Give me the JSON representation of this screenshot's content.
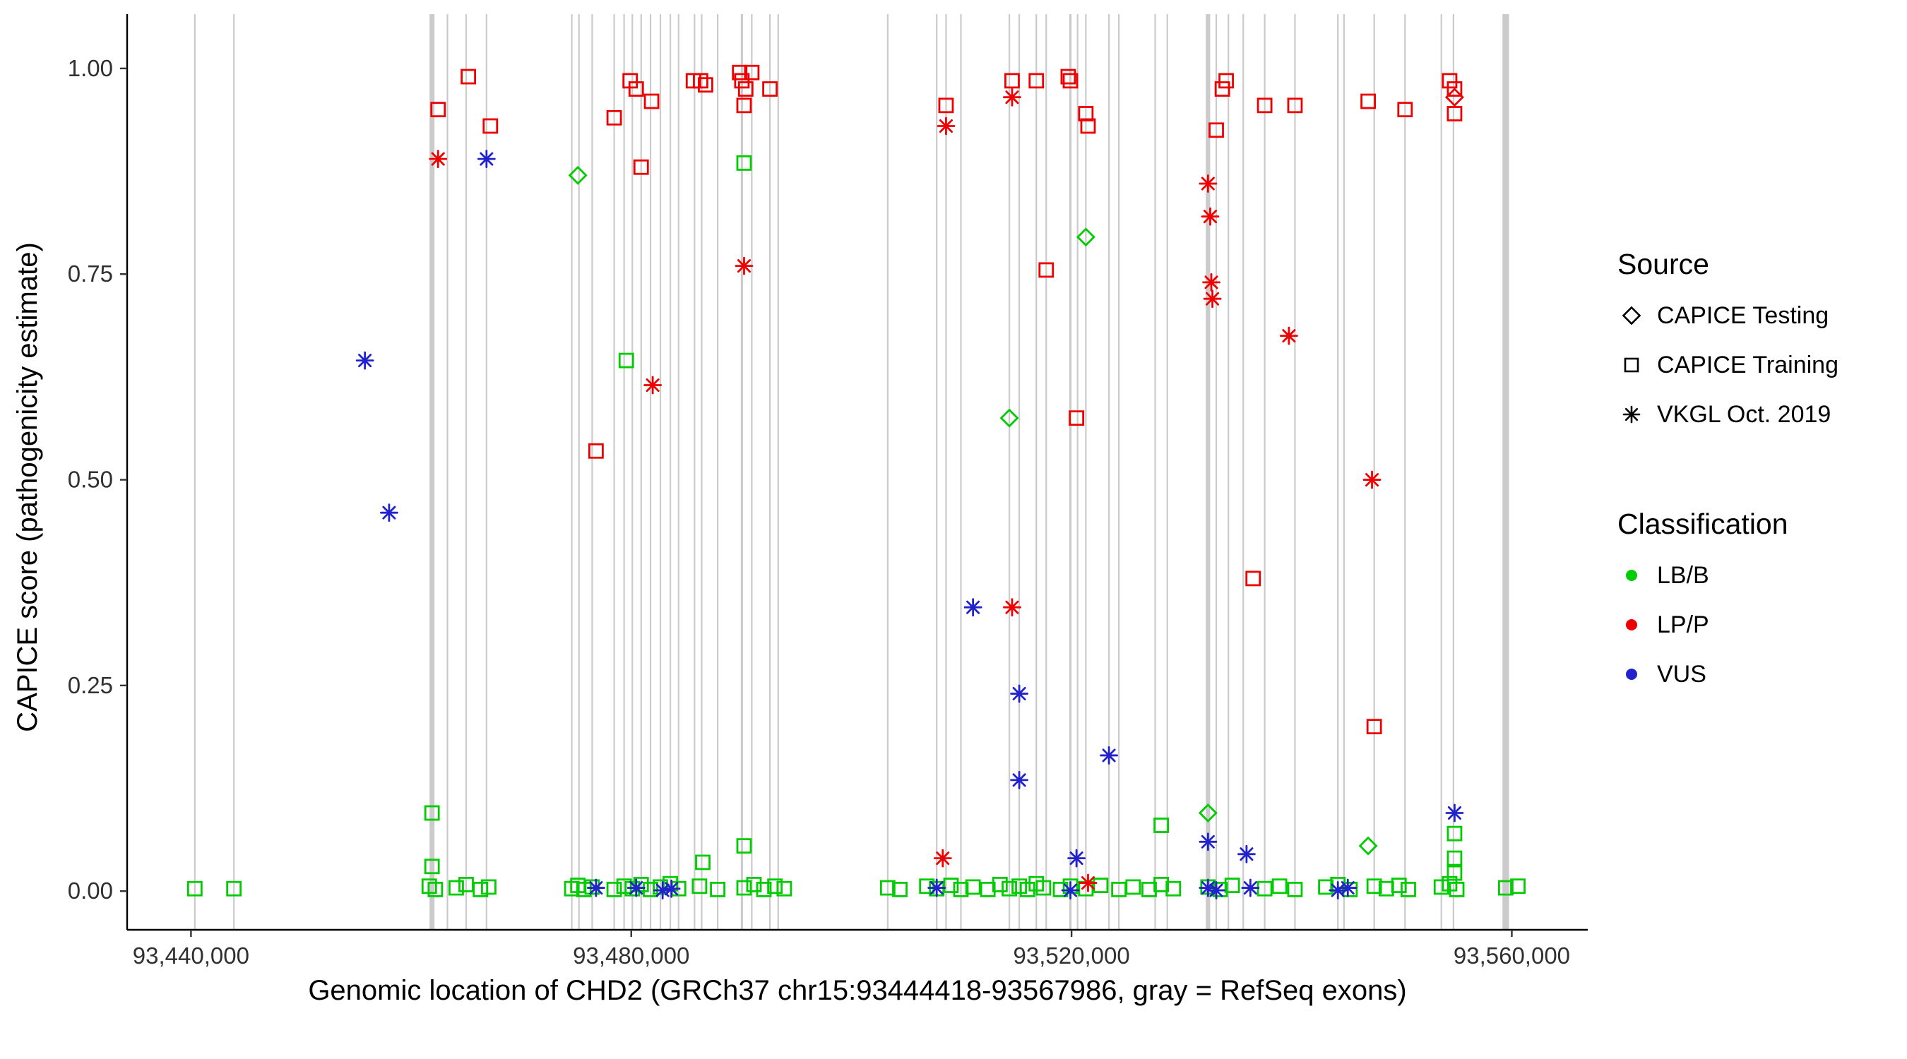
{
  "chart_data": {
    "type": "scatter",
    "title": "",
    "xlabel": "Genomic location of CHD2 (GRCh37 chr15:93444418-93567986, gray = RefSeq exons)",
    "ylabel": "CAPICE score (pathogenicity estimate)",
    "x_domain": [
      93434200,
      93566900
    ],
    "y_domain": [
      -0.047,
      1.066
    ],
    "x_ticks": [
      {
        "value": 93440000,
        "label": "93,440,000"
      },
      {
        "value": 93480000,
        "label": "93,480,000"
      },
      {
        "value": 93520000,
        "label": "93,520,000"
      },
      {
        "value": 93560000,
        "label": "93,560,000"
      }
    ],
    "y_ticks": [
      {
        "value": 0.0,
        "label": "0.00"
      },
      {
        "value": 0.25,
        "label": "0.25"
      },
      {
        "value": 0.5,
        "label": "0.50"
      },
      {
        "value": 0.75,
        "label": "0.75"
      },
      {
        "value": 1.0,
        "label": "1.00"
      }
    ],
    "exon_color": "#cbcbcb",
    "colors": {
      "LB/B": "#00cc00",
      "LP/P": "#ee0000",
      "VUS": "#2222cc"
    },
    "legend": {
      "source": {
        "title": "Source",
        "items": [
          {
            "shape": "diamond",
            "label": "CAPICE Testing"
          },
          {
            "shape": "square",
            "label": "CAPICE Training"
          },
          {
            "shape": "asterisk",
            "label": "VKGL Oct. 2019"
          }
        ]
      },
      "classification": {
        "title": "Classification",
        "items": [
          {
            "color_key": "LB/B",
            "label": "LB/B"
          },
          {
            "color_key": "LP/P",
            "label": "LP/P"
          },
          {
            "color_key": "VUS",
            "label": "VUS"
          }
        ]
      }
    },
    "exons": [
      [
        93440350,
        130
      ],
      [
        93443900,
        130
      ],
      [
        93461900,
        450
      ],
      [
        93463300,
        130
      ],
      [
        93465000,
        130
      ],
      [
        93466850,
        130
      ],
      [
        93474600,
        130
      ],
      [
        93475250,
        130
      ],
      [
        93476450,
        130
      ],
      [
        93478450,
        130
      ],
      [
        93479350,
        130
      ],
      [
        93480100,
        130
      ],
      [
        93480900,
        130
      ],
      [
        93481750,
        130
      ],
      [
        93482650,
        130
      ],
      [
        93483550,
        130
      ],
      [
        93484300,
        130
      ],
      [
        93485750,
        130
      ],
      [
        93486400,
        130
      ],
      [
        93487850,
        130
      ],
      [
        93490050,
        200
      ],
      [
        93490950,
        130
      ],
      [
        93492600,
        130
      ],
      [
        93493350,
        130
      ],
      [
        93503300,
        130
      ],
      [
        93507750,
        130
      ],
      [
        93508600,
        130
      ],
      [
        93509950,
        130
      ],
      [
        93514350,
        130
      ],
      [
        93515250,
        130
      ],
      [
        93516800,
        130
      ],
      [
        93517700,
        130
      ],
      [
        93519900,
        200
      ],
      [
        93520550,
        130
      ],
      [
        93521300,
        130
      ],
      [
        93523400,
        130
      ],
      [
        93524300,
        130
      ],
      [
        93527600,
        130
      ],
      [
        93528700,
        130
      ],
      [
        93532400,
        400
      ],
      [
        93533150,
        130
      ],
      [
        93534250,
        130
      ],
      [
        93535600,
        130
      ],
      [
        93537550,
        130
      ],
      [
        93540300,
        130
      ],
      [
        93544200,
        130
      ],
      [
        93544750,
        130
      ],
      [
        93547500,
        130
      ],
      [
        93550300,
        130
      ],
      [
        93553600,
        130
      ],
      [
        93554700,
        130
      ],
      [
        93559450,
        600
      ]
    ],
    "points": [
      [
        93440350,
        0.003,
        "training",
        "LB/B"
      ],
      [
        93443900,
        0.003,
        "training",
        "LB/B"
      ],
      [
        93461650,
        0.006,
        "training",
        "LB/B"
      ],
      [
        93462200,
        0.002,
        "training",
        "LB/B"
      ],
      [
        93464100,
        0.004,
        "training",
        "LB/B"
      ],
      [
        93465000,
        0.008,
        "training",
        "LB/B"
      ],
      [
        93466300,
        0.002,
        "training",
        "LB/B"
      ],
      [
        93467050,
        0.005,
        "training",
        "LB/B"
      ],
      [
        93474600,
        0.003,
        "training",
        "LB/B"
      ],
      [
        93475150,
        0.007,
        "training",
        "LB/B"
      ],
      [
        93475700,
        0.002,
        "training",
        "LB/B"
      ],
      [
        93476450,
        0.005,
        "training",
        "LB/B"
      ],
      [
        93478450,
        0.002,
        "training",
        "LB/B"
      ],
      [
        93479350,
        0.006,
        "training",
        "LB/B"
      ],
      [
        93480100,
        0.003,
        "training",
        "LB/B"
      ],
      [
        93480900,
        0.008,
        "training",
        "LB/B"
      ],
      [
        93481750,
        0.002,
        "training",
        "LB/B"
      ],
      [
        93482650,
        0.005,
        "training",
        "LB/B"
      ],
      [
        93483550,
        0.009,
        "training",
        "LB/B"
      ],
      [
        93484300,
        0.003,
        "training",
        "LB/B"
      ],
      [
        93486200,
        0.006,
        "training",
        "LB/B"
      ],
      [
        93487850,
        0.002,
        "training",
        "LB/B"
      ],
      [
        93490250,
        0.004,
        "training",
        "LB/B"
      ],
      [
        93491150,
        0.008,
        "training",
        "LB/B"
      ],
      [
        93492050,
        0.002,
        "training",
        "LB/B"
      ],
      [
        93493050,
        0.006,
        "training",
        "LB/B"
      ],
      [
        93493900,
        0.003,
        "training",
        "LB/B"
      ],
      [
        93503300,
        0.004,
        "training",
        "LB/B"
      ],
      [
        93504400,
        0.002,
        "training",
        "LB/B"
      ],
      [
        93506850,
        0.006,
        "training",
        "LB/B"
      ],
      [
        93507750,
        0.003,
        "training",
        "LB/B"
      ],
      [
        93509050,
        0.007,
        "training",
        "LB/B"
      ],
      [
        93509950,
        0.002,
        "training",
        "LB/B"
      ],
      [
        93511050,
        0.005,
        "training",
        "LB/B"
      ],
      [
        93512400,
        0.002,
        "training",
        "LB/B"
      ],
      [
        93513500,
        0.008,
        "training",
        "LB/B"
      ],
      [
        93514350,
        0.003,
        "training",
        "LB/B"
      ],
      [
        93515250,
        0.006,
        "training",
        "LB/B"
      ],
      [
        93516000,
        0.002,
        "training",
        "LB/B"
      ],
      [
        93516800,
        0.009,
        "training",
        "LB/B"
      ],
      [
        93517450,
        0.004,
        "training",
        "LB/B"
      ],
      [
        93519000,
        0.002,
        "training",
        "LB/B"
      ],
      [
        93519900,
        0.006,
        "training",
        "LB/B"
      ],
      [
        93521300,
        0.003,
        "training",
        "LB/B"
      ],
      [
        93522650,
        0.007,
        "training",
        "LB/B"
      ],
      [
        93524300,
        0.002,
        "training",
        "LB/B"
      ],
      [
        93525600,
        0.005,
        "training",
        "LB/B"
      ],
      [
        93527050,
        0.002,
        "training",
        "LB/B"
      ],
      [
        93528150,
        0.008,
        "training",
        "LB/B"
      ],
      [
        93529250,
        0.003,
        "training",
        "LB/B"
      ],
      [
        93532400,
        0.005,
        "training",
        "LB/B"
      ],
      [
        93533500,
        0.002,
        "training",
        "LB/B"
      ],
      [
        93534600,
        0.007,
        "training",
        "LB/B"
      ],
      [
        93537550,
        0.003,
        "training",
        "LB/B"
      ],
      [
        93538900,
        0.006,
        "training",
        "LB/B"
      ],
      [
        93540300,
        0.002,
        "training",
        "LB/B"
      ],
      [
        93543100,
        0.005,
        "training",
        "LB/B"
      ],
      [
        93544200,
        0.008,
        "training",
        "LB/B"
      ],
      [
        93545300,
        0.002,
        "training",
        "LB/B"
      ],
      [
        93547500,
        0.006,
        "training",
        "LB/B"
      ],
      [
        93548600,
        0.003,
        "training",
        "LB/B"
      ],
      [
        93549750,
        0.007,
        "training",
        "LB/B"
      ],
      [
        93550600,
        0.002,
        "training",
        "LB/B"
      ],
      [
        93553600,
        0.005,
        "training",
        "LB/B"
      ],
      [
        93554350,
        0.009,
        "training",
        "LB/B"
      ],
      [
        93555000,
        0.002,
        "training",
        "LB/B"
      ],
      [
        93559450,
        0.004,
        "training",
        "LB/B"
      ],
      [
        93560550,
        0.006,
        "training",
        "LB/B"
      ],
      [
        93461900,
        0.095,
        "training",
        "LB/B"
      ],
      [
        93461900,
        0.03,
        "training",
        "LB/B"
      ],
      [
        93486500,
        0.035,
        "training",
        "LB/B"
      ],
      [
        93490250,
        0.055,
        "training",
        "LB/B"
      ],
      [
        93528150,
        0.08,
        "training",
        "LB/B"
      ],
      [
        93554800,
        0.07,
        "training",
        "LB/B"
      ],
      [
        93554800,
        0.04,
        "training",
        "LB/B"
      ],
      [
        93554800,
        0.022,
        "training",
        "LB/B"
      ],
      [
        93479550,
        0.645,
        "training",
        "LB/B"
      ],
      [
        93490250,
        0.885,
        "training",
        "LB/B"
      ],
      [
        93475150,
        0.87,
        "testing",
        "LB/B"
      ],
      [
        93514350,
        0.575,
        "testing",
        "LB/B"
      ],
      [
        93521300,
        0.795,
        "testing",
        "LB/B"
      ],
      [
        93532400,
        0.095,
        "testing",
        "LB/B"
      ],
      [
        93546950,
        0.055,
        "testing",
        "LB/B"
      ],
      [
        93455800,
        0.645,
        "vkgl",
        "VUS"
      ],
      [
        93458000,
        0.46,
        "vkgl",
        "VUS"
      ],
      [
        93466850,
        0.89,
        "vkgl",
        "VUS"
      ],
      [
        93511050,
        0.345,
        "vkgl",
        "VUS"
      ],
      [
        93515250,
        0.24,
        "vkgl",
        "VUS"
      ],
      [
        93515250,
        0.135,
        "vkgl",
        "VUS"
      ],
      [
        93523400,
        0.165,
        "vkgl",
        "VUS"
      ],
      [
        93520450,
        0.04,
        "vkgl",
        "VUS"
      ],
      [
        93532400,
        0.06,
        "vkgl",
        "VUS"
      ],
      [
        93535900,
        0.045,
        "vkgl",
        "VUS"
      ],
      [
        93554800,
        0.095,
        "vkgl",
        "VUS"
      ],
      [
        93476800,
        0.004,
        "vkgl",
        "VUS"
      ],
      [
        93480450,
        0.004,
        "vkgl",
        "VUS"
      ],
      [
        93482850,
        0.001,
        "vkgl",
        "VUS"
      ],
      [
        93483650,
        0.003,
        "vkgl",
        "VUS"
      ],
      [
        93507750,
        0.004,
        "vkgl",
        "VUS"
      ],
      [
        93519900,
        0.001,
        "vkgl",
        "VUS"
      ],
      [
        93532400,
        0.004,
        "vkgl",
        "VUS"
      ],
      [
        93533150,
        0.001,
        "vkgl",
        "VUS"
      ],
      [
        93536250,
        0.004,
        "vkgl",
        "VUS"
      ],
      [
        93544200,
        0.001,
        "vkgl",
        "VUS"
      ],
      [
        93545100,
        0.004,
        "vkgl",
        "VUS"
      ],
      [
        93462450,
        0.95,
        "training",
        "LP/P"
      ],
      [
        93465200,
        0.99,
        "training",
        "LP/P"
      ],
      [
        93467200,
        0.93,
        "training",
        "LP/P"
      ],
      [
        93476800,
        0.535,
        "training",
        "LP/P"
      ],
      [
        93478450,
        0.94,
        "training",
        "LP/P"
      ],
      [
        93479900,
        0.985,
        "training",
        "LP/P"
      ],
      [
        93480450,
        0.975,
        "training",
        "LP/P"
      ],
      [
        93480900,
        0.88,
        "training",
        "LP/P"
      ],
      [
        93481850,
        0.96,
        "training",
        "LP/P"
      ],
      [
        93485650,
        0.985,
        "training",
        "LP/P"
      ],
      [
        93486300,
        0.985,
        "training",
        "LP/P"
      ],
      [
        93486750,
        0.98,
        "training",
        "LP/P"
      ],
      [
        93489850,
        0.995,
        "training",
        "LP/P"
      ],
      [
        93490050,
        0.985,
        "training",
        "LP/P"
      ],
      [
        93490400,
        0.975,
        "training",
        "LP/P"
      ],
      [
        93490250,
        0.955,
        "training",
        "LP/P"
      ],
      [
        93490950,
        0.995,
        "training",
        "LP/P"
      ],
      [
        93492600,
        0.975,
        "training",
        "LP/P"
      ],
      [
        93508600,
        0.955,
        "training",
        "LP/P"
      ],
      [
        93514600,
        0.985,
        "training",
        "LP/P"
      ],
      [
        93516800,
        0.985,
        "training",
        "LP/P"
      ],
      [
        93517700,
        0.755,
        "training",
        "LP/P"
      ],
      [
        93519700,
        0.99,
        "training",
        "LP/P"
      ],
      [
        93519900,
        0.985,
        "training",
        "LP/P"
      ],
      [
        93520450,
        0.575,
        "training",
        "LP/P"
      ],
      [
        93521300,
        0.945,
        "training",
        "LP/P"
      ],
      [
        93521500,
        0.93,
        "training",
        "LP/P"
      ],
      [
        93533150,
        0.925,
        "training",
        "LP/P"
      ],
      [
        93533700,
        0.975,
        "training",
        "LP/P"
      ],
      [
        93534050,
        0.985,
        "training",
        "LP/P"
      ],
      [
        93536500,
        0.38,
        "training",
        "LP/P"
      ],
      [
        93537550,
        0.955,
        "training",
        "LP/P"
      ],
      [
        93540300,
        0.955,
        "training",
        "LP/P"
      ],
      [
        93546950,
        0.96,
        "training",
        "LP/P"
      ],
      [
        93547500,
        0.2,
        "training",
        "LP/P"
      ],
      [
        93550300,
        0.95,
        "training",
        "LP/P"
      ],
      [
        93554350,
        0.985,
        "training",
        "LP/P"
      ],
      [
        93554800,
        0.975,
        "training",
        "LP/P"
      ],
      [
        93554800,
        0.945,
        "training",
        "LP/P"
      ],
      [
        93462450,
        0.89,
        "vkgl",
        "LP/P"
      ],
      [
        93481950,
        0.615,
        "vkgl",
        "LP/P"
      ],
      [
        93490250,
        0.76,
        "vkgl",
        "LP/P"
      ],
      [
        93508300,
        0.04,
        "vkgl",
        "LP/P"
      ],
      [
        93508600,
        0.93,
        "vkgl",
        "LP/P"
      ],
      [
        93514600,
        0.965,
        "vkgl",
        "LP/P"
      ],
      [
        93514600,
        0.345,
        "vkgl",
        "LP/P"
      ],
      [
        93521500,
        0.01,
        "vkgl",
        "LP/P"
      ],
      [
        93532400,
        0.86,
        "vkgl",
        "LP/P"
      ],
      [
        93532600,
        0.82,
        "vkgl",
        "LP/P"
      ],
      [
        93532700,
        0.74,
        "vkgl",
        "LP/P"
      ],
      [
        93532800,
        0.72,
        "vkgl",
        "LP/P"
      ],
      [
        93539750,
        0.675,
        "vkgl",
        "LP/P"
      ],
      [
        93547300,
        0.5,
        "vkgl",
        "LP/P"
      ],
      [
        93554800,
        0.965,
        "testing",
        "LP/P"
      ]
    ]
  }
}
